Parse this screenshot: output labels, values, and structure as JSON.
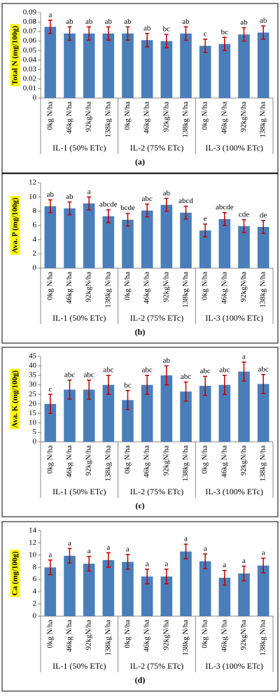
{
  "chart_data": [
    {
      "type": "bar",
      "y_label": "Total N (mg/100g)",
      "panel_label": "(a)",
      "groups": [
        {
          "label": "IL-1 (50% ETc)",
          "categories": [
            "0kg N/ha",
            "46kg N/ha",
            "92kgN/ha",
            "138kg N/ha"
          ]
        },
        {
          "label": "IL-2 (75% ETc)",
          "categories": [
            "0kg N/ha",
            "46kg N/ha",
            "92kgN/ha",
            "138kg N/ha"
          ]
        },
        {
          "label": "IL-3 (100% ETc)",
          "categories": [
            "0kg N/ha",
            "46kg N/ha",
            "92kgN/ha",
            "138kg N/ha"
          ]
        }
      ],
      "values": [
        0.075,
        0.068,
        0.068,
        0.068,
        0.068,
        0.061,
        0.06,
        0.068,
        0.055,
        0.057,
        0.067,
        0.069
      ],
      "errors": [
        0.007,
        0.007,
        0.007,
        0.007,
        0.007,
        0.007,
        0.007,
        0.007,
        0.007,
        0.007,
        0.007,
        0.007
      ],
      "annotations": [
        "a",
        "ab",
        "ab",
        "ab",
        "ab",
        "ab",
        "bc",
        "ab",
        "c",
        "bc",
        "ab",
        "ab"
      ],
      "ylim": [
        0,
        0.09
      ],
      "yticks": [
        0,
        0.01,
        0.02,
        0.03,
        0.04,
        0.05,
        0.06,
        0.07,
        0.08,
        0.09
      ],
      "color": "#4a7ebb",
      "error_color": "#c00000"
    },
    {
      "type": "bar",
      "y_label": "Ava. P (mg/100g)",
      "panel_label": "(b)",
      "groups": [
        {
          "label": "IL-1 (50% ETc)",
          "categories": [
            "0kg N/ha",
            "46kg N/ha",
            "92kgN/ha",
            "138kg N/ha"
          ]
        },
        {
          "label": "IL-2 (75% ETc)",
          "categories": [
            "0kg N/ha",
            "46kg N/ha",
            "92kgN/ha",
            "138kg N/ha"
          ]
        },
        {
          "label": "IL-3 (100% ETc)",
          "categories": [
            "0kg N/ha",
            "46kg N/ha",
            "92kgN/ha",
            "138kg N/ha"
          ]
        }
      ],
      "values": [
        8.7,
        8.4,
        9.1,
        7.3,
        6.8,
        8.1,
        8.9,
        7.8,
        5.3,
        6.9,
        5.9,
        5.8
      ],
      "errors": [
        0.9,
        0.9,
        0.9,
        0.9,
        0.9,
        0.9,
        0.9,
        0.9,
        0.9,
        0.9,
        0.9,
        0.9
      ],
      "annotations": [
        "ab",
        "ab",
        "a",
        "abcde",
        "bcde",
        "abc",
        "ab",
        "abcd",
        "e",
        "abcde",
        "cde",
        "de"
      ],
      "ylim": [
        0,
        12
      ],
      "yticks": [
        0,
        2,
        4,
        6,
        8,
        10,
        12
      ],
      "color": "#4a7ebb",
      "error_color": "#c00000"
    },
    {
      "type": "bar",
      "y_label": "Ava. K (mg/100g)",
      "panel_label": "(c)",
      "groups": [
        {
          "label": "IL-1 (50% ETc)",
          "categories": [
            "0kg N/ha",
            "46kg N/ha",
            "92kgN/ha",
            "138kg N/ha"
          ]
        },
        {
          "label": "IL-2 (75% ETc)",
          "categories": [
            "0kg N/ha",
            "46kg N/ha",
            "92kgN/ha",
            "138kg N/ha"
          ]
        },
        {
          "label": "IL-3 (100% ETc)",
          "categories": [
            "0kg N/ha",
            "46kg N/ha",
            "92kgN/ha",
            "138kg N/ha"
          ]
        }
      ],
      "values": [
        20,
        27.5,
        27.5,
        30,
        22,
        30,
        35,
        26.5,
        29.5,
        30,
        37,
        30.5
      ],
      "errors": [
        5,
        5,
        5,
        5,
        5,
        5,
        5,
        5,
        5,
        5,
        5,
        5
      ],
      "annotations": [
        "c",
        "abc",
        "abc",
        "abc",
        "bc",
        "abc",
        "ab",
        "abc",
        "abc",
        "abc",
        "a",
        "abc"
      ],
      "ylim": [
        0,
        45
      ],
      "yticks": [
        0,
        5,
        10,
        15,
        20,
        25,
        30,
        35,
        40,
        45
      ],
      "color": "#4a7ebb",
      "error_color": "#c00000"
    },
    {
      "type": "bar",
      "y_label": "Ca (mg/100g)",
      "panel_label": "(d)",
      "groups": [
        {
          "label": "IL-1 (50% ETc)",
          "categories": [
            "0kg N/ha",
            "46kg N/ha",
            "92kgN/ha",
            "138kg N/ha"
          ]
        },
        {
          "label": "IL-2 (75% ETc)",
          "categories": [
            "0kg N/ha",
            "46kg N/ha",
            "92kgN/ha",
            "138kg N/ha"
          ]
        },
        {
          "label": "IL-3 (100% ETc)",
          "categories": [
            "0kg N/ha",
            "46kg N/ha",
            "92kgN/ha",
            "138kg N/ha"
          ]
        }
      ],
      "values": [
        8.0,
        9.9,
        8.6,
        9.2,
        8.9,
        6.5,
        6.5,
        10.6,
        9.0,
        6.3,
        7.0,
        8.3
      ],
      "errors": [
        1.2,
        1.2,
        1.2,
        1.2,
        1.2,
        1.2,
        1.2,
        1.2,
        1.2,
        1.2,
        1.2,
        1.2
      ],
      "annotations": [
        "a",
        "a",
        "a",
        "a",
        "a",
        "a",
        "a",
        "a",
        "a",
        "a",
        "a",
        "a"
      ],
      "ylim": [
        0,
        14
      ],
      "yticks": [
        0,
        2,
        4,
        6,
        8,
        10,
        12,
        14
      ],
      "color": "#4a7ebb",
      "error_color": "#c00000"
    }
  ]
}
